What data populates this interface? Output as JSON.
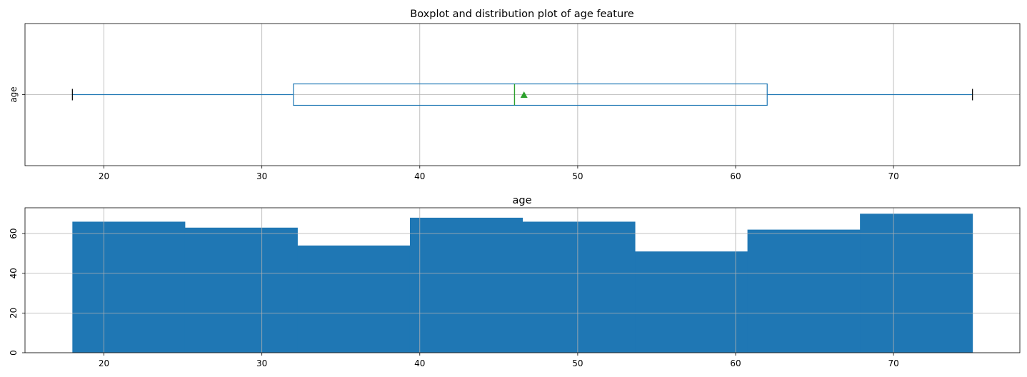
{
  "chart_data": [
    {
      "type": "box",
      "title": "Boxplot and distribution plot of age feature",
      "ylabel": "age",
      "category": "age",
      "stats": {
        "min": 18,
        "q1": 32,
        "median": 46,
        "mean": 46.6,
        "q3": 62,
        "max": 75
      },
      "xlim": [
        15,
        78
      ],
      "xticks": [
        20,
        30,
        40,
        50,
        60,
        70
      ],
      "grid": true,
      "colors": {
        "box": "#1f77b4",
        "median": "#2ca02c",
        "mean_marker": "#2ca02c",
        "whisker_cap": "#000000"
      }
    },
    {
      "type": "histogram",
      "title": "age",
      "bins": [
        {
          "x0": 18.0,
          "x1": 25.125,
          "count": 66
        },
        {
          "x0": 25.125,
          "x1": 32.25,
          "count": 63
        },
        {
          "x0": 32.25,
          "x1": 39.375,
          "count": 54
        },
        {
          "x0": 39.375,
          "x1": 46.5,
          "count": 68
        },
        {
          "x0": 46.5,
          "x1": 53.625,
          "count": 66
        },
        {
          "x0": 53.625,
          "x1": 60.75,
          "count": 51
        },
        {
          "x0": 60.75,
          "x1": 67.875,
          "count": 62
        },
        {
          "x0": 67.875,
          "x1": 75.0,
          "count": 70
        }
      ],
      "xlim": [
        15,
        78
      ],
      "ylim": [
        0,
        73
      ],
      "xticks": [
        20,
        30,
        40,
        50,
        60,
        70
      ],
      "yticks": [
        0,
        20,
        40,
        60
      ],
      "grid": true,
      "colors": {
        "bar": "#1f77b4"
      }
    }
  ]
}
